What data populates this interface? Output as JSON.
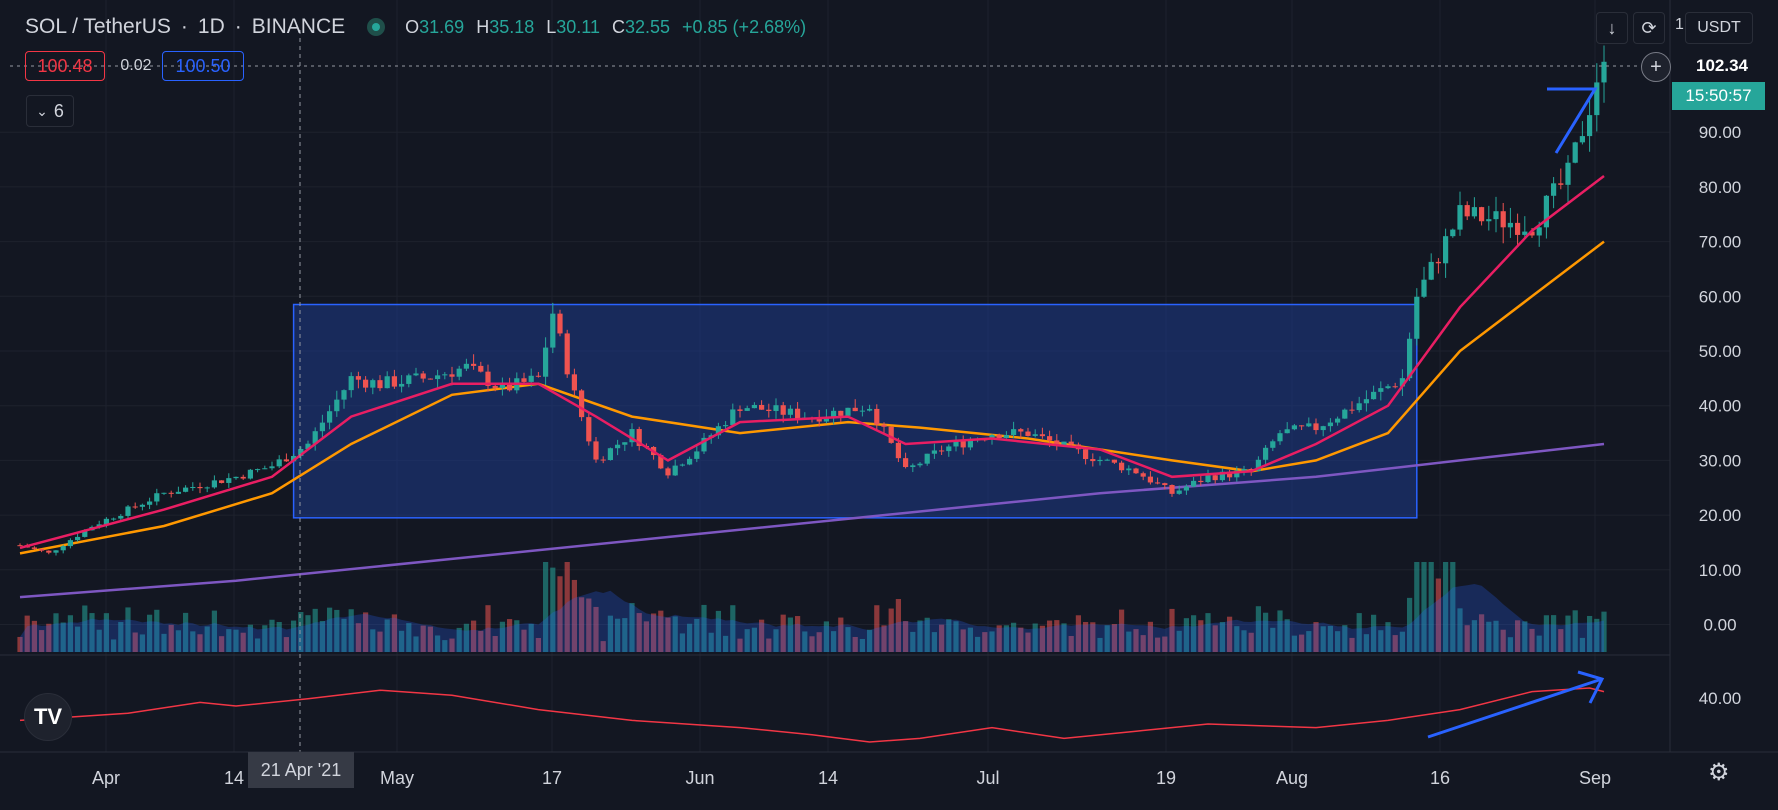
{
  "header": {
    "symbol": "SOL / TetherUS",
    "interval": "1D",
    "exchange": "BINANCE",
    "o_label": "O",
    "o_value": "31.69",
    "h_label": "H",
    "h_value": "35.18",
    "l_label": "L",
    "l_value": "30.11",
    "c_label": "C",
    "c_value": "32.55",
    "change": "+0.85 (+2.68%)"
  },
  "quote": {
    "bid": "100.48",
    "spread": "0.02",
    "ask": "100.50"
  },
  "indicators_toggle": {
    "count": "6"
  },
  "toolbar": {
    "multiplier": "1",
    "currency": "USDT"
  },
  "price_scale": {
    "last_price": "102.34",
    "countdown": "15:50:57",
    "ticks": [
      "90.00",
      "80.00",
      "70.00",
      "60.00",
      "50.00",
      "40.00",
      "30.00",
      "20.00",
      "10.00",
      "0.00"
    ]
  },
  "oscillator": {
    "tick": "40.00"
  },
  "time_axis": {
    "labels": [
      "Apr",
      "14",
      "May",
      "17",
      "Jun",
      "14",
      "Jul",
      "19",
      "Aug",
      "16",
      "Sep"
    ],
    "crosshair_label": "21 Apr '21"
  },
  "colors": {
    "background": "#131722",
    "up": "#26a69a",
    "down": "#ef5350",
    "ma_fast": "#e91e63",
    "ma_slow": "#ff9800",
    "ma_long": "#7e57c2",
    "oscillator": "#f23645",
    "box_fill": "#1e3a8a",
    "annotation": "#2962ff"
  },
  "chart_data": {
    "type": "candlestick",
    "x_start": "2021-03-21",
    "x_end": "2021-09-01",
    "ylim": [
      -5,
      105
    ],
    "price_path": [
      [
        0,
        14.5
      ],
      [
        4,
        13
      ],
      [
        10,
        18
      ],
      [
        20,
        24
      ],
      [
        30,
        27
      ],
      [
        35,
        29
      ],
      [
        40,
        33
      ],
      [
        46,
        45
      ],
      [
        50,
        44
      ],
      [
        56,
        45
      ],
      [
        62,
        47
      ],
      [
        67,
        43
      ],
      [
        72,
        45
      ],
      [
        74,
        57
      ],
      [
        77,
        42
      ],
      [
        80,
        30
      ],
      [
        85,
        35
      ],
      [
        90,
        28
      ],
      [
        94,
        32
      ],
      [
        100,
        40
      ],
      [
        110,
        38
      ],
      [
        118,
        40
      ],
      [
        123,
        28
      ],
      [
        128,
        32
      ],
      [
        135,
        35
      ],
      [
        140,
        35
      ],
      [
        148,
        31
      ],
      [
        155,
        28
      ],
      [
        160,
        24
      ],
      [
        165,
        27
      ],
      [
        171,
        28
      ],
      [
        175,
        35
      ],
      [
        180,
        36
      ],
      [
        188,
        42
      ],
      [
        192,
        45
      ],
      [
        194,
        60
      ],
      [
        200,
        75
      ],
      [
        210,
        73
      ],
      [
        215,
        82
      ],
      [
        218,
        95
      ],
      [
        219,
        100
      ],
      [
        220,
        101
      ]
    ],
    "ma_fast_path": [
      [
        0,
        14
      ],
      [
        20,
        21
      ],
      [
        35,
        27
      ],
      [
        46,
        38
      ],
      [
        60,
        44
      ],
      [
        72,
        44
      ],
      [
        80,
        38
      ],
      [
        90,
        30
      ],
      [
        100,
        37
      ],
      [
        115,
        38
      ],
      [
        123,
        33
      ],
      [
        135,
        34
      ],
      [
        150,
        32
      ],
      [
        160,
        27
      ],
      [
        171,
        28
      ],
      [
        180,
        33
      ],
      [
        190,
        40
      ],
      [
        200,
        58
      ],
      [
        210,
        72
      ],
      [
        220,
        82
      ]
    ],
    "ma_slow_path": [
      [
        0,
        13
      ],
      [
        20,
        18
      ],
      [
        35,
        24
      ],
      [
        46,
        33
      ],
      [
        60,
        42
      ],
      [
        72,
        44
      ],
      [
        85,
        38
      ],
      [
        100,
        35
      ],
      [
        115,
        37
      ],
      [
        125,
        36
      ],
      [
        140,
        34
      ],
      [
        160,
        30
      ],
      [
        171,
        28
      ],
      [
        180,
        30
      ],
      [
        190,
        35
      ],
      [
        200,
        50
      ],
      [
        210,
        60
      ],
      [
        220,
        70
      ]
    ],
    "ma_long_path": [
      [
        0,
        5
      ],
      [
        30,
        8
      ],
      [
        60,
        12
      ],
      [
        90,
        16
      ],
      [
        120,
        20
      ],
      [
        150,
        24
      ],
      [
        180,
        27
      ],
      [
        200,
        30
      ],
      [
        220,
        33
      ]
    ],
    "range_box": {
      "x0": 38,
      "x1": 194,
      "y0": 58.5,
      "y1": 19.5
    },
    "oscillator_path": [
      [
        0,
        70
      ],
      [
        15,
        60
      ],
      [
        25,
        45
      ],
      [
        30,
        50
      ],
      [
        40,
        40
      ],
      [
        50,
        28
      ],
      [
        60,
        35
      ],
      [
        72,
        55
      ],
      [
        85,
        70
      ],
      [
        100,
        80
      ],
      [
        110,
        90
      ],
      [
        118,
        100
      ],
      [
        125,
        95
      ],
      [
        135,
        80
      ],
      [
        145,
        95
      ],
      [
        155,
        85
      ],
      [
        165,
        75
      ],
      [
        180,
        80
      ],
      [
        190,
        70
      ],
      [
        200,
        55
      ],
      [
        210,
        30
      ],
      [
        218,
        25
      ],
      [
        220,
        30
      ]
    ]
  }
}
